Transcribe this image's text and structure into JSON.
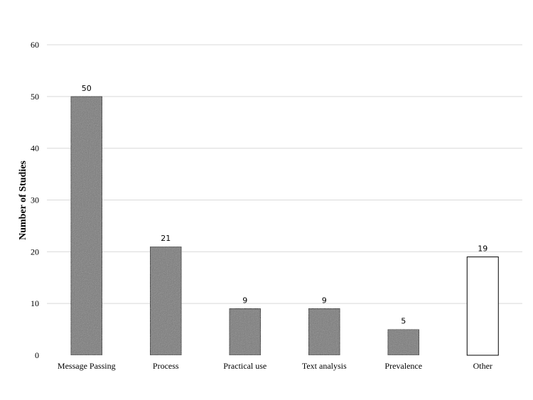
{
  "chart_data": {
    "type": "bar",
    "title": "",
    "xlabel": "",
    "ylabel": "Number of Studies",
    "ylim": [
      0,
      60
    ],
    "yticks": [
      0,
      10,
      20,
      30,
      40,
      50,
      60
    ],
    "grid": true,
    "categories": [
      "Message Passing",
      "Process",
      "Practical use",
      "Text analysis",
      "Prevalence",
      "Other"
    ],
    "values": [
      50,
      21,
      9,
      9,
      5,
      19
    ],
    "bar_styles": [
      "gray",
      "gray",
      "gray",
      "gray",
      "gray",
      "white"
    ],
    "colors": {
      "gray": "#7a7a7a",
      "white": "#ffffff",
      "outline": "#000000"
    }
  }
}
